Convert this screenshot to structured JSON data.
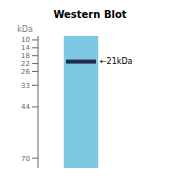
{
  "chart_data": {
    "type": "gel",
    "title": "Western Blot",
    "y_label": "kDa",
    "ylim": [
      75,
      8
    ],
    "yticks": [
      70,
      44,
      33,
      26,
      22,
      18,
      14,
      10
    ],
    "values": [
      21
    ],
    "color": "#1a1a3a",
    "annotations": [
      {
        "text": "←21kDa",
        "y": 21
      }
    ]
  }
}
